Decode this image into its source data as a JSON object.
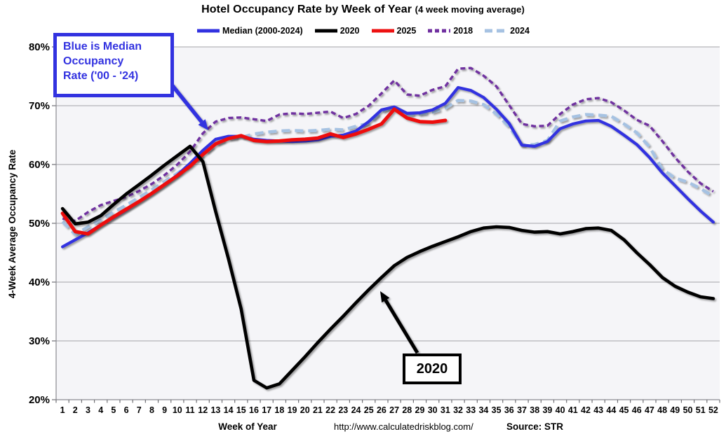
{
  "title": {
    "main": "Hotel Occupancy Rate by  Week of Year",
    "paren": "(4 week moving average)"
  },
  "legend": {
    "items": [
      {
        "label": "Median (2000-2024)",
        "color": "#3232e0",
        "dash": "none"
      },
      {
        "label": "2020",
        "color": "#000000",
        "dash": "none"
      },
      {
        "label": "2025",
        "color": "#ed1111",
        "dash": "none"
      },
      {
        "label": "2018",
        "color": "#7030a0",
        "dash": "6,4"
      },
      {
        "label": "2024",
        "color": "#a6c2e2",
        "dash": "11,6"
      }
    ]
  },
  "annotations": {
    "median_note": {
      "text": "Blue is Median\nOccupancy\nRate ('00 - '24)",
      "color": "#3232e0"
    },
    "covid_note": {
      "text": "2020"
    }
  },
  "footer": {
    "xlabel": "Week of Year",
    "url": "http://www.calculatedriskblog.com/",
    "source": "Source: STR"
  },
  "chart_data": {
    "type": "line",
    "title": "Hotel Occupancy Rate by Week of Year (4 week moving average)",
    "xlabel": "Week of Year",
    "ylabel": "4-Week Average Occupancy Rate",
    "ylim": [
      20,
      80
    ],
    "grid": "horizontal",
    "legend_position": "top",
    "y_ticks": [
      {
        "label": "80%",
        "value": 80
      },
      {
        "label": "70%",
        "value": 70
      },
      {
        "label": "60%",
        "value": 60
      },
      {
        "label": "50%",
        "value": 50
      },
      {
        "label": "40%",
        "value": 40
      },
      {
        "label": "30%",
        "value": 30
      },
      {
        "label": "20%",
        "value": 20
      }
    ],
    "x_ticks": [
      "1",
      "2",
      "3",
      "4",
      "5",
      "6",
      "7",
      "8",
      "9",
      "10",
      "11",
      "12",
      "13",
      "14",
      "15",
      "16",
      "17",
      "18",
      "19",
      "20",
      "21",
      "22",
      "23",
      "24",
      "25",
      "26",
      "27",
      "28",
      "29",
      "30",
      "31",
      "32",
      "33",
      "34",
      "35",
      "36",
      "37",
      "38",
      "39",
      "40",
      "41",
      "42",
      "43",
      "44",
      "45",
      "46",
      "47",
      "48",
      "49",
      "50",
      "51",
      "52"
    ],
    "z_order": [
      4,
      3,
      0,
      2,
      1
    ],
    "series": [
      {
        "name": "Median (2000-2024)",
        "color": "#3232e0",
        "style": "solid",
        "width": 4.2,
        "dash": "none",
        "values": [
          46.0,
          47.2,
          48.4,
          49.7,
          51.0,
          52.3,
          53.7,
          55.1,
          56.6,
          58.2,
          60.2,
          62.4,
          64.3,
          64.8,
          64.8,
          64.3,
          64.1,
          64.0,
          63.9,
          64.0,
          64.2,
          64.8,
          65.0,
          65.7,
          67.3,
          69.3,
          69.8,
          68.7,
          68.8,
          69.3,
          70.4,
          73.1,
          72.6,
          71.4,
          69.4,
          67.0,
          63.3,
          63.1,
          63.9,
          66.1,
          66.9,
          67.4,
          67.5,
          66.5,
          65.0,
          63.4,
          61.2,
          58.6,
          56.4,
          54.2,
          52.1,
          50.2
        ]
      },
      {
        "name": "2020",
        "color": "#000000",
        "style": "solid",
        "width": 4.6,
        "dash": "none",
        "values": [
          52.5,
          49.9,
          50.2,
          51.3,
          53.2,
          55.0,
          56.6,
          58.2,
          59.9,
          61.5,
          63.1,
          60.5,
          52.0,
          44.0,
          35.4,
          23.3,
          22.0,
          22.7,
          25.0,
          27.3,
          29.7,
          32.0,
          34.2,
          36.5,
          38.7,
          40.8,
          42.8,
          44.2,
          45.2,
          46.1,
          46.9,
          47.7,
          48.6,
          49.2,
          49.4,
          49.3,
          48.8,
          48.5,
          48.6,
          48.2,
          48.6,
          49.1,
          49.2,
          48.8,
          47.2,
          45.0,
          43.0,
          40.8,
          39.3,
          38.3,
          37.5,
          37.2
        ]
      },
      {
        "name": "2025",
        "color": "#ed1111",
        "style": "solid",
        "width": 5,
        "dash": "none",
        "values": [
          51.7,
          48.6,
          48.2,
          49.7,
          51.1,
          52.4,
          53.7,
          55.1,
          56.6,
          58.1,
          59.7,
          61.7,
          63.5,
          64.4,
          64.9,
          64.1,
          63.9,
          64.0,
          64.2,
          64.3,
          64.5,
          65.2,
          64.6,
          65.2,
          66.0,
          66.9,
          69.4,
          67.9,
          67.3,
          67.2,
          67.5
        ]
      },
      {
        "name": "2018",
        "color": "#7030a0",
        "style": "dashed",
        "width": 3.4,
        "dash": "7,4.5",
        "values": [
          50.8,
          50.4,
          51.9,
          53.1,
          53.8,
          54.5,
          55.5,
          56.7,
          58.2,
          60.0,
          62.2,
          65.3,
          67.3,
          67.9,
          68.0,
          67.7,
          67.4,
          68.5,
          68.7,
          68.6,
          68.8,
          69.0,
          67.9,
          68.6,
          70.0,
          72.1,
          74.3,
          71.9,
          71.7,
          72.7,
          73.3,
          76.3,
          76.4,
          75.1,
          73.3,
          70.1,
          66.9,
          66.5,
          66.6,
          68.6,
          70.2,
          71.1,
          71.3,
          70.6,
          69.2,
          67.6,
          66.6,
          64.0,
          61.2,
          58.8,
          56.8,
          55.4
        ]
      },
      {
        "name": "2024",
        "color": "#a6c2e2",
        "style": "dashed",
        "width": 4.4,
        "dash": "12,7",
        "values": [
          50.3,
          48.1,
          49.4,
          50.6,
          51.9,
          53.1,
          54.4,
          55.7,
          57.1,
          58.5,
          60.0,
          61.6,
          63.4,
          64.4,
          64.6,
          65.2,
          65.5,
          65.7,
          65.8,
          65.7,
          65.8,
          66.0,
          65.9,
          66.5,
          67.0,
          69.0,
          69.9,
          68.4,
          68.6,
          68.9,
          69.6,
          70.9,
          70.8,
          70.2,
          68.6,
          66.4,
          63.3,
          63.4,
          64.1,
          67.4,
          68.1,
          68.5,
          68.4,
          68.2,
          66.9,
          65.4,
          63.0,
          59.2,
          57.7,
          57.0,
          55.9,
          54.6
        ]
      }
    ]
  }
}
